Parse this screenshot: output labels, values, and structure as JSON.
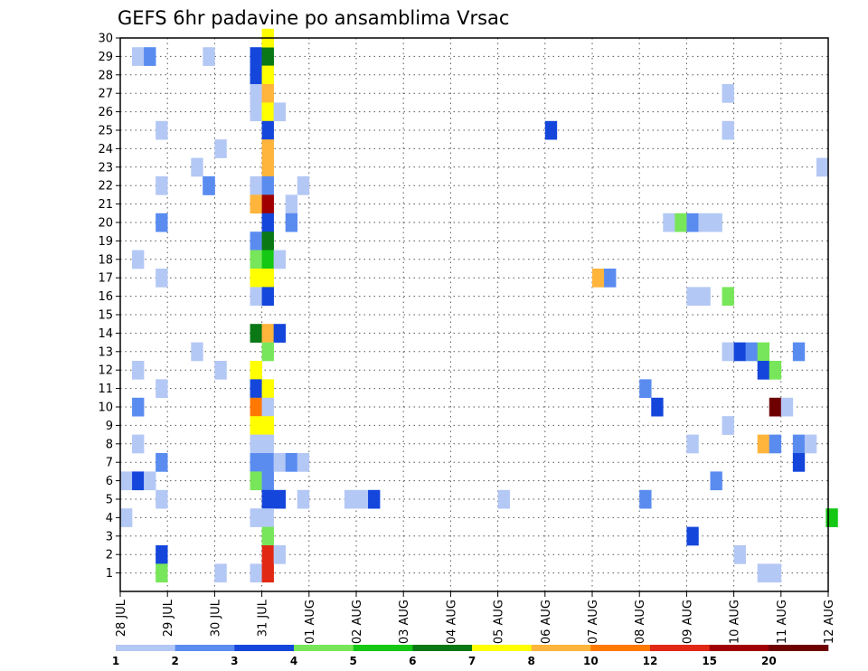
{
  "chart_data": {
    "type": "heatmap",
    "title": "GEFS 6hr padavine po ansamblima Vrsac",
    "xlabel": "",
    "ylabel": "",
    "x_tick_labels": [
      "28 JUL",
      "29 JUL",
      "30 JUL",
      "31 JUL",
      "01 AUG",
      "02 AUG",
      "03 AUG",
      "04 AUG",
      "05 AUG",
      "06 AUG",
      "07 AUG",
      "08 AUG",
      "09 AUG",
      "10 AUG",
      "11 AUG",
      "12 AUG"
    ],
    "y_tick_labels": [
      "1",
      "2",
      "3",
      "4",
      "5",
      "6",
      "7",
      "8",
      "9",
      "10",
      "11",
      "12",
      "13",
      "14",
      "15",
      "16",
      "17",
      "18",
      "19",
      "20",
      "21",
      "22",
      "23",
      "24",
      "25",
      "26",
      "27",
      "28",
      "29",
      "30"
    ],
    "xlim_days": [
      0,
      15
    ],
    "ylim_members": [
      0,
      30
    ],
    "steps_per_day": 4,
    "grid": true,
    "colorbar": {
      "tick_labels": [
        "1",
        "2",
        "3",
        "4",
        "5",
        "6",
        "7",
        "8",
        "10",
        "12",
        "15",
        "20"
      ],
      "colors": [
        "#b4c8f5",
        "#5a8cf0",
        "#1446dc",
        "#78e65a",
        "#14c814",
        "#0a7814",
        "#ffff00",
        "#ffb43c",
        "#ff7800",
        "#e12814",
        "#a00000",
        "#6e0000"
      ]
    },
    "cells_note": "each cell = [x_day_start, member, color_class(1-12)]",
    "cells": [
      [
        0.25,
        29,
        1
      ],
      [
        0.5,
        29,
        2
      ],
      [
        1.75,
        29,
        1
      ],
      [
        2.75,
        29,
        3
      ],
      [
        3.0,
        29,
        6
      ],
      [
        3.0,
        30,
        7
      ],
      [
        2.75,
        28,
        3
      ],
      [
        3.0,
        28,
        7
      ],
      [
        2.75,
        27,
        1
      ],
      [
        3.0,
        27,
        8
      ],
      [
        12.75,
        27,
        1
      ],
      [
        2.75,
        26,
        1
      ],
      [
        3.0,
        26,
        7
      ],
      [
        3.25,
        26,
        1
      ],
      [
        0.75,
        25,
        1
      ],
      [
        3.0,
        25,
        3
      ],
      [
        9.0,
        25,
        3
      ],
      [
        12.75,
        25,
        1
      ],
      [
        2.0,
        24,
        1
      ],
      [
        3.0,
        24,
        8
      ],
      [
        1.5,
        23,
        1
      ],
      [
        3.0,
        23,
        8
      ],
      [
        14.75,
        23,
        1
      ],
      [
        1.75,
        22,
        1
      ],
      [
        1.75,
        22,
        1
      ],
      [
        1.75,
        22,
        2
      ],
      [
        1.75,
        22,
        1
      ],
      [
        0.75,
        22,
        1
      ],
      [
        1.75,
        22,
        2
      ],
      [
        2.75,
        22,
        1
      ],
      [
        3.0,
        22,
        2
      ],
      [
        3.75,
        22,
        1
      ],
      [
        2.75,
        21,
        8
      ],
      [
        3.0,
        21,
        11
      ],
      [
        3.5,
        21,
        1
      ],
      [
        0.75,
        20,
        2
      ],
      [
        3.0,
        20,
        3
      ],
      [
        3.5,
        20,
        2
      ],
      [
        11.5,
        20,
        1
      ],
      [
        11.75,
        20,
        4
      ],
      [
        12.0,
        20,
        2
      ],
      [
        12.25,
        20,
        1
      ],
      [
        12.5,
        20,
        1
      ],
      [
        2.75,
        19,
        2
      ],
      [
        3.0,
        19,
        6
      ],
      [
        0.25,
        18,
        1
      ],
      [
        2.75,
        18,
        4
      ],
      [
        3.0,
        18,
        5
      ],
      [
        3.25,
        18,
        1
      ],
      [
        0.75,
        17,
        1
      ],
      [
        2.75,
        17,
        7
      ],
      [
        3.0,
        17,
        7
      ],
      [
        10.0,
        17,
        8
      ],
      [
        10.25,
        17,
        2
      ],
      [
        2.75,
        16,
        1
      ],
      [
        3.0,
        16,
        3
      ],
      [
        12.0,
        16,
        1
      ],
      [
        12.25,
        16,
        1
      ],
      [
        12.75,
        16,
        4
      ],
      [
        2.75,
        14,
        6
      ],
      [
        3.0,
        14,
        8
      ],
      [
        3.25,
        14,
        3
      ],
      [
        1.5,
        13,
        1
      ],
      [
        3.0,
        13,
        4
      ],
      [
        12.75,
        13,
        1
      ],
      [
        13.0,
        13,
        3
      ],
      [
        13.25,
        13,
        2
      ],
      [
        13.5,
        13,
        4
      ],
      [
        14.25,
        13,
        2
      ],
      [
        0.25,
        12,
        1
      ],
      [
        2.0,
        12,
        1
      ],
      [
        2.75,
        12,
        7
      ],
      [
        13.5,
        12,
        3
      ],
      [
        13.75,
        12,
        4
      ],
      [
        0.75,
        11,
        1
      ],
      [
        2.75,
        11,
        3
      ],
      [
        3.0,
        11,
        7
      ],
      [
        11.0,
        11,
        2
      ],
      [
        0.25,
        10,
        2
      ],
      [
        2.75,
        10,
        9
      ],
      [
        3.0,
        10,
        1
      ],
      [
        11.25,
        10,
        3
      ],
      [
        13.75,
        10,
        12
      ],
      [
        14.0,
        10,
        1
      ],
      [
        2.75,
        9,
        7
      ],
      [
        3.0,
        9,
        7
      ],
      [
        12.75,
        9,
        1
      ],
      [
        0.25,
        8,
        1
      ],
      [
        2.75,
        8,
        1
      ],
      [
        3.0,
        8,
        1
      ],
      [
        12.0,
        8,
        1
      ],
      [
        13.5,
        8,
        8
      ],
      [
        13.75,
        8,
        2
      ],
      [
        14.25,
        8,
        2
      ],
      [
        14.5,
        8,
        1
      ],
      [
        0.75,
        7,
        2
      ],
      [
        2.75,
        7,
        2
      ],
      [
        3.0,
        7,
        2
      ],
      [
        3.25,
        7,
        1
      ],
      [
        3.5,
        7,
        2
      ],
      [
        3.75,
        7,
        1
      ],
      [
        14.25,
        7,
        3
      ],
      [
        0.0,
        6,
        1
      ],
      [
        0.25,
        6,
        3
      ],
      [
        0.5,
        6,
        1
      ],
      [
        2.75,
        6,
        4
      ],
      [
        3.0,
        6,
        2
      ],
      [
        12.5,
        6,
        2
      ],
      [
        0.75,
        5,
        1
      ],
      [
        3.0,
        5,
        3
      ],
      [
        3.25,
        5,
        3
      ],
      [
        3.75,
        5,
        1
      ],
      [
        4.75,
        5,
        1
      ],
      [
        5.0,
        5,
        1
      ],
      [
        5.25,
        5,
        3
      ],
      [
        8.0,
        5,
        1
      ],
      [
        11.0,
        5,
        2
      ],
      [
        0.0,
        4,
        1
      ],
      [
        2.75,
        4,
        1
      ],
      [
        3.0,
        4,
        1
      ],
      [
        14.95,
        4,
        5
      ],
      [
        3.0,
        3,
        4
      ],
      [
        12.0,
        3,
        3
      ],
      [
        0.75,
        2,
        3
      ],
      [
        3.0,
        2,
        10
      ],
      [
        3.25,
        2,
        1
      ],
      [
        13.0,
        2,
        1
      ],
      [
        0.75,
        1,
        4
      ],
      [
        2.0,
        1,
        1
      ],
      [
        2.75,
        1,
        1
      ],
      [
        3.0,
        1,
        10
      ],
      [
        13.5,
        1,
        1
      ],
      [
        13.75,
        1,
        1
      ]
    ]
  }
}
